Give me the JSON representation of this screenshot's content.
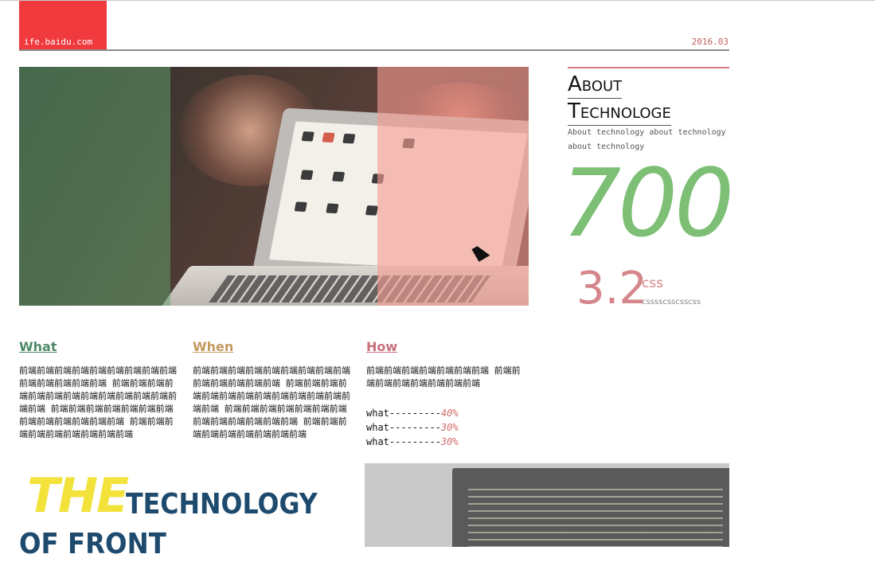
{
  "header": {
    "logo_text": "ife.baidu.com",
    "date": "2016.03"
  },
  "hero": {
    "image_icon": "laptop-photo-icon"
  },
  "about": {
    "title_line1": "About",
    "title_line2": "Technologe",
    "description": "About technology about technology about technology",
    "big_number": "700",
    "sub_number": "3.2",
    "sub_unit": "css",
    "sub_caption": "csssscsscsscss"
  },
  "columns": [
    {
      "title": "What",
      "color": "#4f8a66",
      "text": "前端前端前端前端前端前端前端前端前端前端前端前端前端前端 前端前端前端前端前端前端前端前端前端前端前端前端前端前端 前端前端前端前端前端前端前端前端前端前端前端前端前端 前端前端前端前端前端前端前端前端前端"
    },
    {
      "title": "When",
      "color": "#c59a5f",
      "text": "前端前端前端前端前端前端前端前端前端前端前端前端前端前端 前端前端前端前端前端前端前端前端前端前端前端前端前端前端 前端前端前端前端前端前端前端前端前端前端前端前端前端 前端前端前端前端前端前端前端前端前端"
    },
    {
      "title": "How",
      "color": "#c8707a",
      "text": "前端前端前端前端前端前端前端 前端前端前端前端前端前端前端前端",
      "stats": [
        {
          "label": "what---------",
          "pct": "40%"
        },
        {
          "label": "what---------",
          "pct": "30%"
        },
        {
          "label": "what---------",
          "pct": "30%"
        }
      ]
    }
  ],
  "bottom": {
    "the": "THE",
    "technology": "TECHNOLOGY",
    "of_front": "OF FRONT"
  },
  "colors": {
    "brand_red": "#f03a3e",
    "green": "#7cbf75",
    "pink": "#d4868b",
    "navy": "#1e4a6e",
    "yellow": "#f2e23a"
  }
}
